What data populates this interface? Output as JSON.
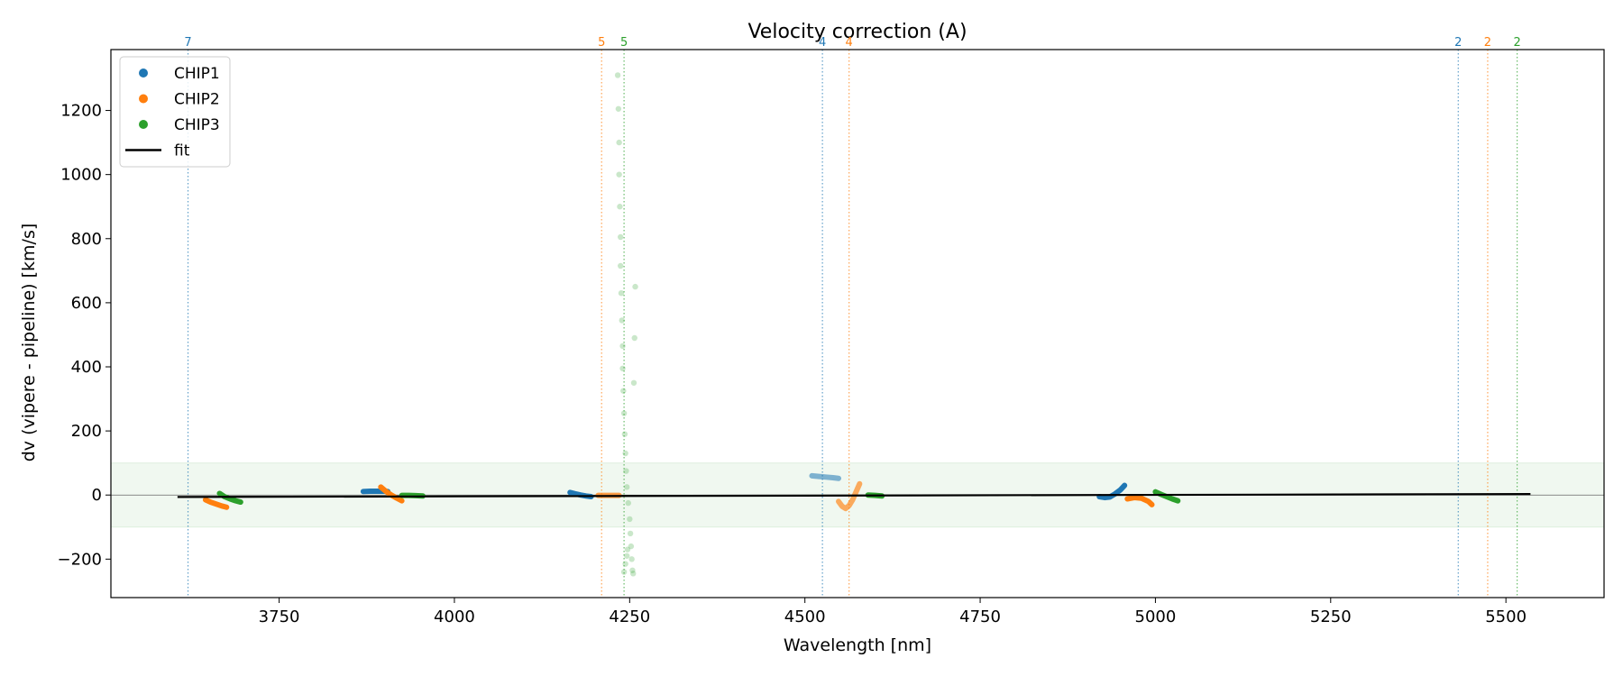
{
  "chart_data": {
    "type": "scatter",
    "title": "Velocity correction (A)",
    "xlabel": "Wavelength [nm]",
    "ylabel": "dv (vipere - pipeline) [km/s]",
    "xlim": [
      3510,
      5640
    ],
    "ylim": [
      -320,
      1390
    ],
    "xticks": [
      3750,
      4000,
      4250,
      4500,
      4750,
      5000,
      5250,
      5500
    ],
    "xtick_labels": [
      "3750",
      "4000",
      "4250",
      "4500",
      "4750",
      "5000",
      "5250",
      "5500"
    ],
    "yticks": [
      -200,
      0,
      200,
      400,
      600,
      800,
      1000,
      1200
    ],
    "ytick_labels": [
      "−200",
      "0",
      "200",
      "400",
      "600",
      "800",
      "1000",
      "1200"
    ],
    "tolerance_band": [
      -100,
      100
    ],
    "legend": {
      "position": "upper-left",
      "entries": [
        {
          "label": "CHIP1",
          "marker": "dot",
          "color": "#1f77b4"
        },
        {
          "label": "CHIP2",
          "marker": "dot",
          "color": "#ff7f0e"
        },
        {
          "label": "CHIP3",
          "marker": "dot",
          "color": "#2ca02c"
        },
        {
          "label": "fit",
          "marker": "line",
          "color": "#000000"
        }
      ]
    },
    "order_markers": [
      {
        "x": 3620,
        "label": "7",
        "color": "#1f77b4"
      },
      {
        "x": 4210,
        "label": "5",
        "color": "#ff7f0e"
      },
      {
        "x": 4242,
        "label": "5",
        "color": "#2ca02c"
      },
      {
        "x": 4525,
        "label": "4",
        "color": "#1f77b4"
      },
      {
        "x": 4563,
        "label": "4",
        "color": "#ff7f0e"
      },
      {
        "x": 5432,
        "label": "2",
        "color": "#1f77b4"
      },
      {
        "x": 5474,
        "label": "2",
        "color": "#ff7f0e"
      },
      {
        "x": 5516,
        "label": "2",
        "color": "#2ca02c"
      }
    ],
    "series": [
      {
        "name": "CHIP1",
        "color": "#1f77b4",
        "segments": [
          {
            "x": [
              3870,
              3880,
              3890,
              3900,
              3905
            ],
            "y": [
              11,
              12,
              12,
              12,
              11
            ]
          },
          {
            "x": [
              4165,
              4172,
              4180,
              4188,
              4195
            ],
            "y": [
              8,
              4,
              0,
              -3,
              -5
            ]
          },
          {
            "x": [
              4510,
              4520,
              4530,
              4540,
              4548
            ],
            "y": [
              60,
              58,
              56,
              54,
              52
            ],
            "alpha": 0.55
          },
          {
            "x": [
              4920,
              4928,
              4935,
              4942,
              4950,
              4956
            ],
            "y": [
              -5,
              -8,
              -6,
              3,
              16,
              30
            ]
          }
        ]
      },
      {
        "name": "CHIP2",
        "color": "#ff7f0e",
        "segments": [
          {
            "x": [
              3645,
              3652,
              3660,
              3668,
              3675
            ],
            "y": [
              -15,
              -22,
              -28,
              -34,
              -38
            ]
          },
          {
            "x": [
              3895,
              3902,
              3910,
              3918,
              3925
            ],
            "y": [
              25,
              12,
              0,
              -10,
              -18
            ]
          },
          {
            "x": [
              4205,
              4215,
              4225,
              4235
            ],
            "y": [
              -1,
              -1,
              -1,
              -1
            ],
            "alpha": 0.75
          },
          {
            "x": [
              4548,
              4553,
              4558,
              4563,
              4568,
              4573,
              4578
            ],
            "y": [
              -20,
              -35,
              -42,
              -33,
              -15,
              10,
              35
            ],
            "alpha": 0.65
          },
          {
            "x": [
              4960,
              4970,
              4980,
              4990,
              4995
            ],
            "y": [
              -12,
              -8,
              -10,
              -20,
              -30
            ]
          }
        ]
      },
      {
        "name": "CHIP3",
        "color": "#2ca02c",
        "segments": [
          {
            "x": [
              3665,
              3672,
              3680,
              3688,
              3695
            ],
            "y": [
              5,
              -5,
              -12,
              -18,
              -22
            ]
          },
          {
            "x": [
              3925,
              3935,
              3945,
              3955
            ],
            "y": [
              -1,
              -1,
              -2,
              -3
            ]
          },
          {
            "x": [
              4590,
              4600,
              4610
            ],
            "y": [
              0,
              -1,
              -3
            ]
          },
          {
            "x": [
              5000,
              5008,
              5016,
              5024,
              5032
            ],
            "y": [
              10,
              2,
              -5,
              -12,
              -18
            ]
          }
        ],
        "scatter": {
          "alpha": 0.25,
          "x": [
            4233,
            4234,
            4235,
            4235,
            4236,
            4237,
            4237,
            4238,
            4239,
            4240,
            4240,
            4241,
            4242,
            4243,
            4244,
            4245,
            4246,
            4248,
            4250,
            4251,
            4252,
            4253,
            4254,
            4255,
            4256,
            4257,
            4258,
            4242,
            4244,
            4246,
            4247
          ],
          "y": [
            1310,
            1205,
            1100,
            1000,
            900,
            805,
            715,
            630,
            545,
            465,
            395,
            325,
            255,
            190,
            130,
            75,
            25,
            -25,
            -75,
            -120,
            -160,
            -200,
            -235,
            -245,
            350,
            490,
            650,
            -240,
            -215,
            -190,
            -170
          ]
        }
      },
      {
        "name": "fit",
        "color": "#000000",
        "x": [
          3605,
          5535
        ],
        "y": [
          -6,
          3
        ]
      }
    ]
  }
}
